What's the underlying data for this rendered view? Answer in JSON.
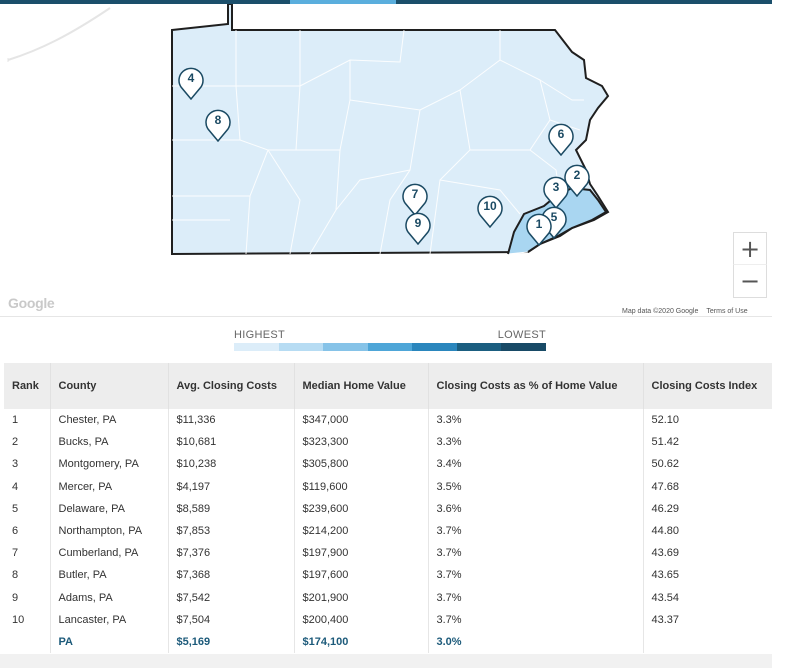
{
  "map": {
    "markers": [
      {
        "label": "4"
      },
      {
        "label": "8"
      },
      {
        "label": "6"
      },
      {
        "label": "2"
      },
      {
        "label": "3"
      },
      {
        "label": "7"
      },
      {
        "label": "10"
      },
      {
        "label": "5"
      },
      {
        "label": "1"
      },
      {
        "label": "9"
      }
    ],
    "zoom_in": "+",
    "zoom_out": "−",
    "google_logo": "Google",
    "attribution": "Map data ©2020 Google",
    "terms": "Terms of Use",
    "colors": {
      "state_fill": "#dcedf9",
      "highlight_fill": "#9fcfee",
      "border": "#1f1f1f",
      "marker_text": "#1b4a63"
    }
  },
  "legend": {
    "highest": "HIGHEST",
    "lowest": "LOWEST",
    "colors": [
      "#dcedf9",
      "#b7dcf3",
      "#86c3e8",
      "#4ea6d8",
      "#2a86bd",
      "#1b5e80",
      "#184a66"
    ]
  },
  "table": {
    "headers": [
      "Rank",
      "County",
      "Avg. Closing Costs",
      "Median Home Value",
      "Closing Costs as % of Home Value",
      "Closing Costs Index"
    ],
    "rows": [
      [
        "1",
        "Chester, PA",
        "$11,336",
        "$347,000",
        "3.3%",
        "52.10"
      ],
      [
        "2",
        "Bucks, PA",
        "$10,681",
        "$323,300",
        "3.3%",
        "51.42"
      ],
      [
        "3",
        "Montgomery, PA",
        "$10,238",
        "$305,800",
        "3.4%",
        "50.62"
      ],
      [
        "4",
        "Mercer, PA",
        "$4,197",
        "$119,600",
        "3.5%",
        "47.68"
      ],
      [
        "5",
        "Delaware, PA",
        "$8,589",
        "$239,600",
        "3.6%",
        "46.29"
      ],
      [
        "6",
        "Northampton, PA",
        "$7,853",
        "$214,200",
        "3.7%",
        "44.80"
      ],
      [
        "7",
        "Cumberland, PA",
        "$7,376",
        "$197,900",
        "3.7%",
        "43.69"
      ],
      [
        "8",
        "Butler, PA",
        "$7,368",
        "$197,600",
        "3.7%",
        "43.65"
      ],
      [
        "9",
        "Adams, PA",
        "$7,542",
        "$201,900",
        "3.7%",
        "43.54"
      ],
      [
        "10",
        "Lancaster, PA",
        "$7,504",
        "$200,400",
        "3.7%",
        "43.37"
      ]
    ],
    "total": [
      "",
      "PA",
      "$5,169",
      "$174,100",
      "3.0%",
      ""
    ]
  }
}
